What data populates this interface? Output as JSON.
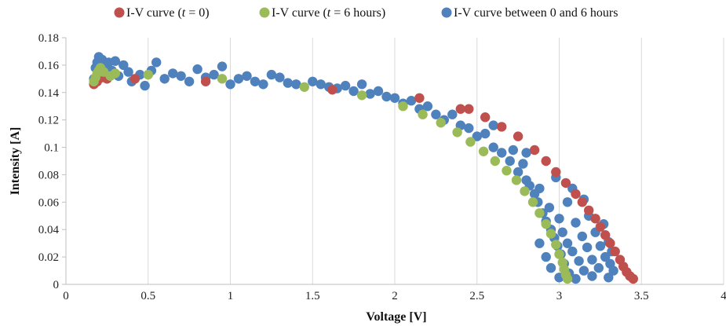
{
  "chart_data": {
    "type": "scatter",
    "title": "",
    "xlabel": "Voltage [V]",
    "ylabel": "Intensity  [A]",
    "xlim": [
      0,
      4
    ],
    "ylim": [
      0,
      0.18
    ],
    "xticks": [
      "0",
      "0.5",
      "1",
      "1.5",
      "2",
      "2.5",
      "3",
      "3.5",
      "4"
    ],
    "yticks": [
      "0",
      "0.02",
      "0.04",
      "0.06",
      "0.08",
      "0.1",
      "0.12",
      "0.14",
      "0.16",
      "0.18"
    ],
    "grid": "vertical",
    "legend": "top",
    "series": [
      {
        "name": "I-V curve (t = 0)",
        "legend_parts": [
          "I-V curve (",
          "t",
          " = 0)"
        ],
        "color": "#c0504d",
        "points": [
          [
            0.17,
            0.146
          ],
          [
            0.19,
            0.148
          ],
          [
            0.22,
            0.151
          ],
          [
            0.25,
            0.15
          ],
          [
            0.42,
            0.15
          ],
          [
            0.85,
            0.148
          ],
          [
            1.62,
            0.142
          ],
          [
            2.15,
            0.136
          ],
          [
            2.4,
            0.128
          ],
          [
            2.45,
            0.128
          ],
          [
            2.55,
            0.122
          ],
          [
            2.65,
            0.115
          ],
          [
            2.75,
            0.108
          ],
          [
            2.85,
            0.098
          ],
          [
            2.92,
            0.09
          ],
          [
            2.98,
            0.082
          ],
          [
            3.04,
            0.074
          ],
          [
            3.1,
            0.066
          ],
          [
            3.14,
            0.06
          ],
          [
            3.18,
            0.054
          ],
          [
            3.22,
            0.048
          ],
          [
            3.25,
            0.042
          ],
          [
            3.28,
            0.036
          ],
          [
            3.31,
            0.03
          ],
          [
            3.34,
            0.024
          ],
          [
            3.37,
            0.018
          ],
          [
            3.39,
            0.013
          ],
          [
            3.41,
            0.009
          ],
          [
            3.43,
            0.006
          ],
          [
            3.45,
            0.004
          ]
        ]
      },
      {
        "name": "I-V curve (t = 6 hours)",
        "legend_parts": [
          "I-V curve (",
          "t",
          " = 6 hours)"
        ],
        "color": "#9bbb59",
        "points": [
          [
            0.17,
            0.148
          ],
          [
            0.18,
            0.151
          ],
          [
            0.19,
            0.154
          ],
          [
            0.2,
            0.156
          ],
          [
            0.21,
            0.158
          ],
          [
            0.23,
            0.155
          ],
          [
            0.27,
            0.152
          ],
          [
            0.3,
            0.154
          ],
          [
            0.5,
            0.153
          ],
          [
            0.95,
            0.15
          ],
          [
            1.45,
            0.144
          ],
          [
            1.8,
            0.138
          ],
          [
            2.05,
            0.13
          ],
          [
            2.17,
            0.124
          ],
          [
            2.28,
            0.118
          ],
          [
            2.38,
            0.111
          ],
          [
            2.46,
            0.104
          ],
          [
            2.54,
            0.097
          ],
          [
            2.61,
            0.09
          ],
          [
            2.68,
            0.083
          ],
          [
            2.74,
            0.076
          ],
          [
            2.79,
            0.068
          ],
          [
            2.84,
            0.06
          ],
          [
            2.88,
            0.052
          ],
          [
            2.92,
            0.044
          ],
          [
            2.95,
            0.037
          ],
          [
            2.98,
            0.029
          ],
          [
            3.0,
            0.022
          ],
          [
            3.02,
            0.016
          ],
          [
            3.03,
            0.011
          ],
          [
            3.04,
            0.007
          ],
          [
            3.05,
            0.004
          ]
        ]
      },
      {
        "name": "I-V curve between 0 and 6 hours",
        "legend_parts": [
          "I-V curve between 0 and 6 hours",
          "",
          ""
        ],
        "color": "#4f81bd",
        "points": [
          [
            0.17,
            0.15
          ],
          [
            0.18,
            0.158
          ],
          [
            0.19,
            0.162
          ],
          [
            0.2,
            0.166
          ],
          [
            0.21,
            0.16
          ],
          [
            0.22,
            0.164
          ],
          [
            0.24,
            0.158
          ],
          [
            0.26,
            0.162
          ],
          [
            0.28,
            0.156
          ],
          [
            0.3,
            0.163
          ],
          [
            0.32,
            0.152
          ],
          [
            0.35,
            0.16
          ],
          [
            0.38,
            0.155
          ],
          [
            0.4,
            0.148
          ],
          [
            0.45,
            0.153
          ],
          [
            0.48,
            0.145
          ],
          [
            0.52,
            0.156
          ],
          [
            0.55,
            0.162
          ],
          [
            0.6,
            0.15
          ],
          [
            0.65,
            0.154
          ],
          [
            0.7,
            0.152
          ],
          [
            0.75,
            0.148
          ],
          [
            0.8,
            0.157
          ],
          [
            0.85,
            0.151
          ],
          [
            0.9,
            0.153
          ],
          [
            0.95,
            0.159
          ],
          [
            1.0,
            0.146
          ],
          [
            1.05,
            0.15
          ],
          [
            1.1,
            0.152
          ],
          [
            1.15,
            0.148
          ],
          [
            1.2,
            0.146
          ],
          [
            1.25,
            0.153
          ],
          [
            1.3,
            0.151
          ],
          [
            1.35,
            0.147
          ],
          [
            1.4,
            0.146
          ],
          [
            1.5,
            0.148
          ],
          [
            1.55,
            0.146
          ],
          [
            1.6,
            0.144
          ],
          [
            1.65,
            0.143
          ],
          [
            1.7,
            0.145
          ],
          [
            1.75,
            0.141
          ],
          [
            1.8,
            0.146
          ],
          [
            1.85,
            0.139
          ],
          [
            1.9,
            0.141
          ],
          [
            1.95,
            0.137
          ],
          [
            2.0,
            0.136
          ],
          [
            2.05,
            0.132
          ],
          [
            2.1,
            0.134
          ],
          [
            2.15,
            0.128
          ],
          [
            2.2,
            0.13
          ],
          [
            2.25,
            0.124
          ],
          [
            2.3,
            0.12
          ],
          [
            2.35,
            0.124
          ],
          [
            2.4,
            0.116
          ],
          [
            2.45,
            0.114
          ],
          [
            2.5,
            0.108
          ],
          [
            2.55,
            0.11
          ],
          [
            2.6,
            0.1
          ],
          [
            2.65,
            0.096
          ],
          [
            2.7,
            0.09
          ],
          [
            2.72,
            0.098
          ],
          [
            2.75,
            0.082
          ],
          [
            2.78,
            0.088
          ],
          [
            2.8,
            0.076
          ],
          [
            2.82,
            0.072
          ],
          [
            2.85,
            0.066
          ],
          [
            2.87,
            0.06
          ],
          [
            2.88,
            0.07
          ],
          [
            2.9,
            0.052
          ],
          [
            2.92,
            0.046
          ],
          [
            2.94,
            0.056
          ],
          [
            2.95,
            0.04
          ],
          [
            2.97,
            0.034
          ],
          [
            2.99,
            0.028
          ],
          [
            3.0,
            0.048
          ],
          [
            3.01,
            0.022
          ],
          [
            3.02,
            0.038
          ],
          [
            3.03,
            0.015
          ],
          [
            3.05,
            0.03
          ],
          [
            3.06,
            0.008
          ],
          [
            3.08,
            0.024
          ],
          [
            3.1,
            0.045
          ],
          [
            3.12,
            0.017
          ],
          [
            3.14,
            0.035
          ],
          [
            3.15,
            0.01
          ],
          [
            3.17,
            0.027
          ],
          [
            3.18,
            0.05
          ],
          [
            3.2,
            0.018
          ],
          [
            3.22,
            0.038
          ],
          [
            3.24,
            0.012
          ],
          [
            3.25,
            0.028
          ],
          [
            3.27,
            0.044
          ],
          [
            3.28,
            0.02
          ],
          [
            3.3,
            0.031
          ],
          [
            3.31,
            0.015
          ],
          [
            3.32,
            0.024
          ],
          [
            3.33,
            0.01
          ],
          [
            2.95,
            0.012
          ],
          [
            3.0,
            0.005
          ],
          [
            3.1,
            0.004
          ],
          [
            3.2,
            0.006
          ],
          [
            3.3,
            0.005
          ],
          [
            2.88,
            0.03
          ],
          [
            2.92,
            0.02
          ],
          [
            3.05,
            0.06
          ],
          [
            3.15,
            0.062
          ],
          [
            2.6,
            0.116
          ],
          [
            2.8,
            0.096
          ],
          [
            2.98,
            0.078
          ],
          [
            3.08,
            0.07
          ]
        ]
      }
    ]
  }
}
